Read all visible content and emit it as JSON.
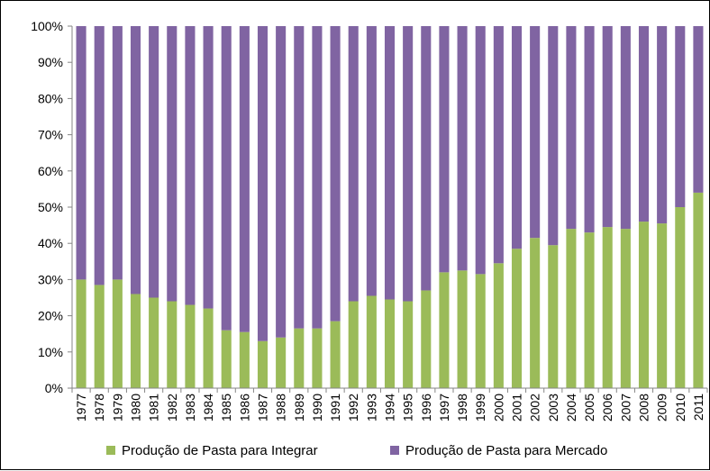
{
  "chart_data": {
    "type": "bar",
    "stacked": true,
    "percent_stacked": true,
    "categories": [
      "1977",
      "1978",
      "1979",
      "1980",
      "1981",
      "1982",
      "1983",
      "1984",
      "1985",
      "1986",
      "1987",
      "1988",
      "1989",
      "1990",
      "1991",
      "1992",
      "1993",
      "1994",
      "1995",
      "1996",
      "1997",
      "1998",
      "1999",
      "2000",
      "2001",
      "2002",
      "2003",
      "2004",
      "2005",
      "2006",
      "2007",
      "2008",
      "2009",
      "2010",
      "2011"
    ],
    "series": [
      {
        "name": "Produção de Pasta para Integrar",
        "color": "#9bbb59",
        "values": [
          30,
          28.5,
          30,
          26,
          25,
          24,
          23,
          22,
          16,
          15.5,
          13,
          14,
          16.5,
          16.5,
          18.5,
          24,
          25.5,
          24.5,
          24,
          27,
          32,
          32.5,
          31.5,
          34.5,
          38.5,
          41.5,
          39.5,
          44,
          43,
          44.5,
          44,
          46,
          45.5,
          50,
          54
        ]
      },
      {
        "name": "Produção de Pasta para Mercado",
        "color": "#8064a2",
        "values": [
          70,
          71.5,
          70,
          74,
          75,
          76,
          77,
          78,
          84,
          84.5,
          87,
          86,
          83.5,
          83.5,
          81.5,
          76,
          74.5,
          75.5,
          76,
          73,
          68,
          67.5,
          68.5,
          65.5,
          61.5,
          58.5,
          60.5,
          56,
          57,
          55.5,
          56,
          54,
          54.5,
          50,
          46
        ]
      }
    ],
    "y_ticks": [
      "0%",
      "10%",
      "20%",
      "30%",
      "40%",
      "50%",
      "60%",
      "70%",
      "80%",
      "90%",
      "100%"
    ],
    "ylim": [
      0,
      100
    ],
    "grid": false,
    "legend_position": "bottom"
  }
}
